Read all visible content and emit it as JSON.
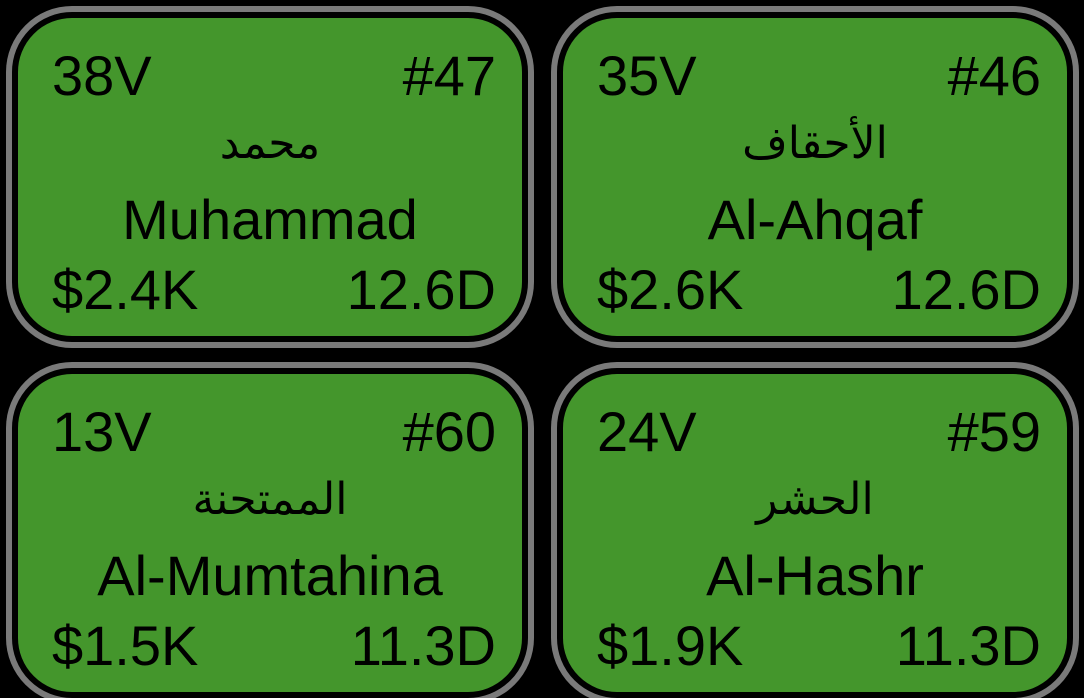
{
  "cards": [
    {
      "verses": "38V",
      "number": "#47",
      "arabic": "محمد",
      "english": "Muhammad",
      "price": "$2.4K",
      "duration": "12.6D"
    },
    {
      "verses": "35V",
      "number": "#46",
      "arabic": "الأحقاف",
      "english": "Al-Ahqaf",
      "price": "$2.6K",
      "duration": "12.6D"
    },
    {
      "verses": "13V",
      "number": "#60",
      "arabic": "الممتحنة",
      "english": "Al-Mumtahina",
      "price": "$1.5K",
      "duration": "11.3D"
    },
    {
      "verses": "24V",
      "number": "#59",
      "arabic": "الحشر",
      "english": "Al-Hashr",
      "price": "$1.9K",
      "duration": "11.3D"
    }
  ],
  "colors": {
    "card_fill": "#44962c",
    "card_border": "#7a7a7a",
    "background": "#000000",
    "text": "#000000"
  }
}
